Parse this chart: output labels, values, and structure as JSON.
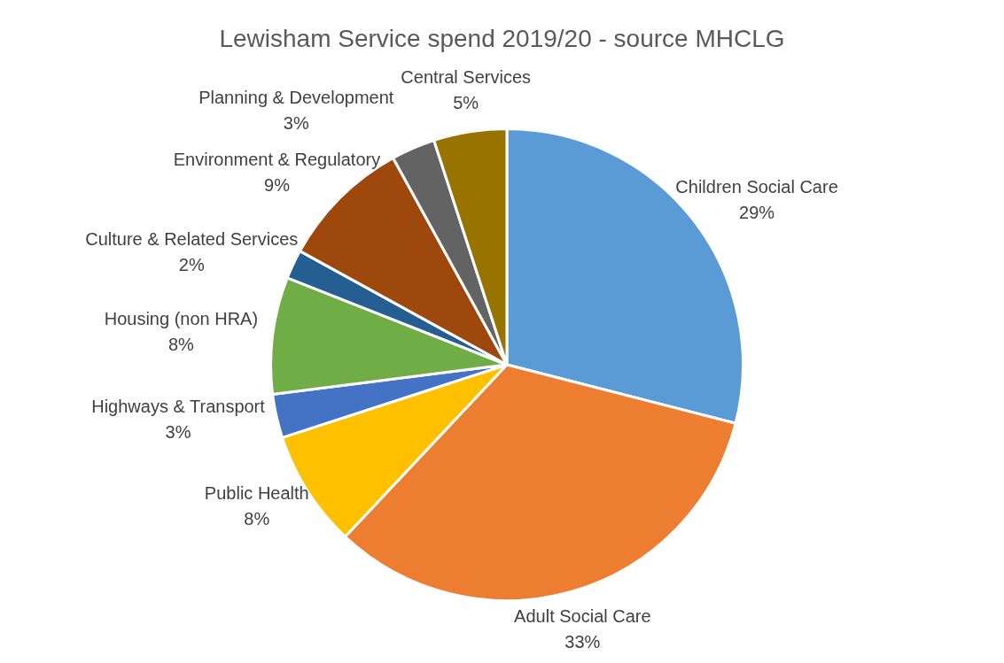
{
  "chart_data": {
    "type": "pie",
    "title": "Lewisham Service spend 2019/20 - source MHCLG",
    "categories": [
      "Children Social Care",
      "Adult Social Care",
      "Public Health",
      "Highways & Transport",
      "Housing (non HRA)",
      "Culture & Related Services",
      "Environment & Regulatory",
      "Planning & Development",
      "Central Services"
    ],
    "values": [
      29,
      33,
      8,
      3,
      8,
      2,
      9,
      3,
      5
    ],
    "colors": [
      "#5b9bd5",
      "#ed7d31",
      "#ffc000",
      "#4472c4",
      "#70ad47",
      "#255e91",
      "#9e480e",
      "#636363",
      "#997300"
    ],
    "value_labels": [
      "29%",
      "33%",
      "8%",
      "3%",
      "8%",
      "2%",
      "9%",
      "3%",
      "5%"
    ],
    "legend": false
  }
}
